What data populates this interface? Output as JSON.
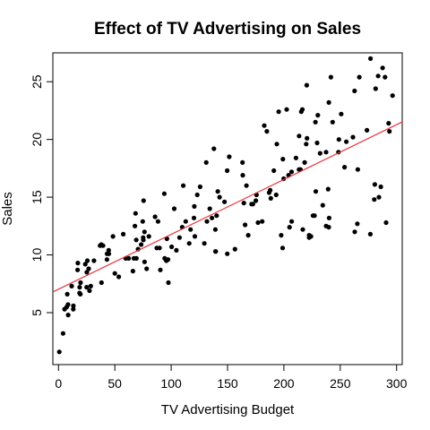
{
  "chart_data": {
    "type": "scatter",
    "title": "Effect of TV Advertising on Sales",
    "xlabel": "TV Advertising Budget",
    "ylabel": "Sales",
    "xlim": [
      -5,
      305
    ],
    "ylim": [
      0.5,
      27.5
    ],
    "x_ticks": [
      0,
      50,
      100,
      150,
      200,
      250,
      300
    ],
    "y_ticks": [
      5,
      10,
      15,
      20,
      25
    ],
    "grid": false,
    "legend": "none",
    "point_color": "#000000",
    "line_color": "#e8353b",
    "regression_line": {
      "intercept": 7.03,
      "slope": 0.0475
    },
    "points": [
      [
        0.7,
        1.6
      ],
      [
        4.1,
        3.2
      ],
      [
        5.4,
        5.3
      ],
      [
        7.3,
        5.5
      ],
      [
        7.8,
        6.6
      ],
      [
        8.4,
        5.7
      ],
      [
        8.6,
        4.8
      ],
      [
        11.7,
        7.3
      ],
      [
        13.1,
        5.3
      ],
      [
        13.2,
        5.6
      ],
      [
        16.9,
        8.7
      ],
      [
        17.2,
        9.3
      ],
      [
        18.7,
        6.7
      ],
      [
        18.8,
        7.2
      ],
      [
        19.4,
        6.6
      ],
      [
        19.6,
        7.6
      ],
      [
        23.8,
        9.2
      ],
      [
        25.0,
        7.2
      ],
      [
        25.1,
        8.5
      ],
      [
        25.6,
        9.5
      ],
      [
        26.8,
        8.8
      ],
      [
        27.5,
        6.9
      ],
      [
        28.6,
        7.3
      ],
      [
        31.5,
        9.5
      ],
      [
        36.9,
        10.8
      ],
      [
        38.0,
        10.9
      ],
      [
        38.2,
        7.6
      ],
      [
        39.5,
        10.8
      ],
      [
        43.0,
        9.6
      ],
      [
        43.1,
        10.1
      ],
      [
        44.5,
        10.4
      ],
      [
        44.7,
        10.1
      ],
      [
        48.3,
        11.6
      ],
      [
        50.0,
        8.4
      ],
      [
        53.5,
        8.1
      ],
      [
        57.5,
        11.8
      ],
      [
        59.6,
        9.7
      ],
      [
        62.3,
        9.7
      ],
      [
        66.1,
        8.6
      ],
      [
        66.9,
        9.7
      ],
      [
        67.8,
        12.5
      ],
      [
        68.4,
        13.6
      ],
      [
        69.0,
        11.3
      ],
      [
        69.2,
        9.7
      ],
      [
        70.6,
        10.5
      ],
      [
        73.4,
        10.9
      ],
      [
        74.7,
        12.9
      ],
      [
        75.1,
        11.5
      ],
      [
        75.3,
        11.3
      ],
      [
        75.5,
        14.7
      ],
      [
        76.3,
        12.0
      ],
      [
        76.4,
        9.4
      ],
      [
        78.2,
        8.8
      ],
      [
        80.2,
        11.6
      ],
      [
        85.7,
        13.3
      ],
      [
        87.2,
        10.6
      ],
      [
        88.3,
        12.9
      ],
      [
        89.7,
        10.6
      ],
      [
        90.4,
        8.7
      ],
      [
        93.9,
        15.3
      ],
      [
        94.2,
        9.7
      ],
      [
        95.7,
        9.5
      ],
      [
        96.2,
        11.4
      ],
      [
        97.2,
        9.6
      ],
      [
        97.5,
        7.6
      ],
      [
        100.4,
        10.7
      ],
      [
        102.7,
        14.0
      ],
      [
        104.6,
        10.4
      ],
      [
        107.4,
        11.5
      ],
      [
        109.8,
        12.4
      ],
      [
        110.7,
        16.0
      ],
      [
        112.9,
        12.9
      ],
      [
        116.0,
        11.0
      ],
      [
        117.2,
        12.2
      ],
      [
        120.2,
        13.2
      ],
      [
        120.5,
        14.2
      ],
      [
        121.0,
        11.6
      ],
      [
        123.1,
        15.2
      ],
      [
        125.7,
        15.9
      ],
      [
        129.4,
        11.0
      ],
      [
        131.1,
        18.0
      ],
      [
        131.7,
        12.9
      ],
      [
        134.3,
        14.0
      ],
      [
        136.2,
        13.2
      ],
      [
        137.9,
        19.2
      ],
      [
        139.2,
        12.2
      ],
      [
        139.3,
        10.3
      ],
      [
        139.5,
        10.3
      ],
      [
        140.3,
        13.4
      ],
      [
        141.3,
        15.5
      ],
      [
        142.9,
        15.0
      ],
      [
        147.3,
        14.6
      ],
      [
        149.7,
        17.3
      ],
      [
        149.8,
        10.1
      ],
      [
        151.5,
        18.5
      ],
      [
        156.6,
        10.5
      ],
      [
        163.3,
        18.0
      ],
      [
        163.5,
        16.9
      ],
      [
        164.5,
        14.5
      ],
      [
        165.6,
        12.6
      ],
      [
        166.8,
        16.0
      ],
      [
        168.4,
        11.7
      ],
      [
        171.3,
        14.4
      ],
      [
        172.5,
        14.4
      ],
      [
        175.1,
        14.7
      ],
      [
        175.7,
        15.2
      ],
      [
        177.0,
        12.8
      ],
      [
        180.8,
        12.9
      ],
      [
        182.6,
        21.2
      ],
      [
        184.9,
        20.7
      ],
      [
        186.9,
        15.4
      ],
      [
        187.8,
        15.6
      ],
      [
        188.4,
        14.9
      ],
      [
        191.1,
        17.3
      ],
      [
        193.2,
        15.2
      ],
      [
        193.7,
        19.6
      ],
      [
        195.4,
        22.4
      ],
      [
        197.6,
        11.7
      ],
      [
        198.9,
        10.6
      ],
      [
        199.1,
        18.3
      ],
      [
        199.8,
        16.6
      ],
      [
        202.5,
        22.6
      ],
      [
        204.1,
        16.9
      ],
      [
        205.0,
        12.4
      ],
      [
        206.8,
        17.2
      ],
      [
        206.9,
        12.9
      ],
      [
        210.7,
        18.4
      ],
      [
        213.4,
        17.4
      ],
      [
        213.5,
        20.3
      ],
      [
        214.7,
        17.4
      ],
      [
        215.4,
        22.4
      ],
      [
        216.4,
        22.6
      ],
      [
        216.8,
        12.2
      ],
      [
        218.4,
        18.0
      ],
      [
        219.8,
        19.6
      ],
      [
        220.3,
        24.7
      ],
      [
        220.5,
        20.1
      ],
      [
        222.4,
        11.7
      ],
      [
        222.4,
        11.5
      ],
      [
        224.0,
        11.6
      ],
      [
        225.8,
        13.4
      ],
      [
        227.2,
        13.4
      ],
      [
        228.0,
        21.5
      ],
      [
        228.3,
        15.5
      ],
      [
        229.5,
        19.7
      ],
      [
        230.1,
        22.1
      ],
      [
        232.1,
        18.8
      ],
      [
        234.5,
        14.3
      ],
      [
        237.4,
        18.9
      ],
      [
        237.4,
        12.5
      ],
      [
        239.3,
        15.7
      ],
      [
        239.8,
        12.4
      ],
      [
        239.9,
        23.2
      ],
      [
        240.1,
        13.2
      ],
      [
        241.7,
        25.4
      ],
      [
        243.2,
        21.5
      ],
      [
        248.4,
        18.9
      ],
      [
        248.8,
        20.0
      ],
      [
        250.9,
        22.2
      ],
      [
        253.8,
        17.6
      ],
      [
        255.4,
        19.8
      ],
      [
        261.3,
        20.2
      ],
      [
        262.7,
        24.2
      ],
      [
        262.9,
        12.0
      ],
      [
        265.2,
        12.7
      ],
      [
        265.6,
        17.4
      ],
      [
        266.9,
        25.4
      ],
      [
        273.7,
        20.8
      ],
      [
        276.7,
        11.8
      ],
      [
        276.9,
        27.0
      ],
      [
        280.2,
        14.8
      ],
      [
        280.7,
        16.1
      ],
      [
        281.4,
        24.4
      ],
      [
        283.6,
        25.5
      ],
      [
        284.3,
        15.0
      ],
      [
        286.0,
        15.9
      ],
      [
        287.6,
        26.2
      ],
      [
        289.7,
        25.4
      ],
      [
        290.7,
        12.8
      ],
      [
        292.9,
        21.4
      ],
      [
        293.6,
        20.7
      ],
      [
        296.4,
        23.8
      ]
    ]
  }
}
